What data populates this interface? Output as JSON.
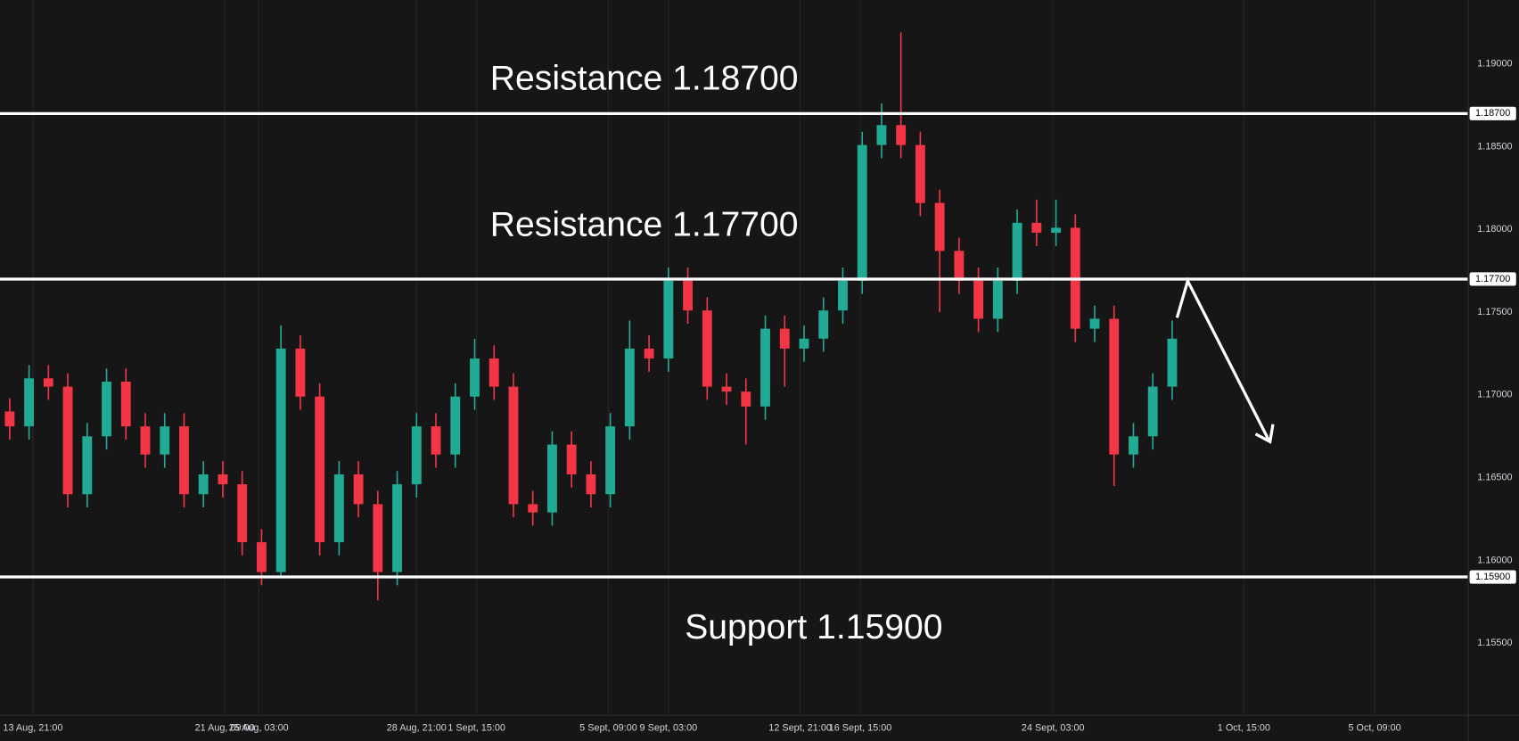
{
  "chart_data": {
    "type": "candlestick",
    "open": [
      1.169,
      1.1681,
      1.171,
      1.1705,
      1.164,
      1.1675,
      1.1708,
      1.1681,
      1.1664,
      1.1681,
      1.164,
      1.1652,
      1.1646,
      1.1611,
      1.1593,
      1.1728,
      1.1699,
      1.1611,
      1.1652,
      1.1634,
      1.1593,
      1.1646,
      1.1681,
      1.1664,
      1.1699,
      1.1722,
      1.1705,
      1.1634,
      1.1629,
      1.167,
      1.1652,
      1.164,
      1.1681,
      1.1728,
      1.1722,
      1.1769,
      1.1751,
      1.1705,
      1.1702,
      1.1693,
      1.174,
      1.1728,
      1.1734,
      1.1751,
      1.1769,
      1.1851,
      1.1863,
      1.1851,
      1.1816,
      1.1787,
      1.1769,
      1.1746,
      1.1769,
      1.1804,
      1.1798,
      1.1801,
      1.174,
      1.1746,
      1.1664,
      1.1675,
      1.1705
    ],
    "high": [
      1.1698,
      1.1718,
      1.1718,
      1.1713,
      1.1683,
      1.1716,
      1.1716,
      1.1689,
      1.1689,
      1.1689,
      1.166,
      1.166,
      1.1654,
      1.1619,
      1.1742,
      1.1736,
      1.1707,
      1.166,
      1.166,
      1.1642,
      1.1654,
      1.1689,
      1.1689,
      1.1707,
      1.1734,
      1.173,
      1.1713,
      1.1642,
      1.1678,
      1.1678,
      1.166,
      1.1689,
      1.1745,
      1.1736,
      1.1777,
      1.1777,
      1.1759,
      1.1713,
      1.171,
      1.1748,
      1.1748,
      1.1742,
      1.1759,
      1.1777,
      1.1859,
      1.1876,
      1.1919,
      1.1859,
      1.1824,
      1.1795,
      1.1777,
      1.1777,
      1.1812,
      1.1818,
      1.1818,
      1.1809,
      1.1754,
      1.1754,
      1.1683,
      1.1713,
      1.1745
    ],
    "low": [
      1.1673,
      1.1673,
      1.1697,
      1.1632,
      1.1632,
      1.1667,
      1.1673,
      1.1656,
      1.1656,
      1.1632,
      1.1632,
      1.1638,
      1.1603,
      1.1585,
      1.159,
      1.1691,
      1.1603,
      1.1603,
      1.1626,
      1.1576,
      1.1585,
      1.1638,
      1.1656,
      1.1656,
      1.1691,
      1.1697,
      1.1626,
      1.1621,
      1.1621,
      1.1644,
      1.1632,
      1.1632,
      1.1673,
      1.1714,
      1.1714,
      1.1743,
      1.1697,
      1.1694,
      1.167,
      1.1685,
      1.1705,
      1.172,
      1.1726,
      1.1743,
      1.1761,
      1.1843,
      1.1843,
      1.1808,
      1.175,
      1.1761,
      1.1738,
      1.1738,
      1.1761,
      1.179,
      1.179,
      1.1732,
      1.1732,
      1.1645,
      1.1656,
      1.1667,
      1.1697
    ],
    "close": [
      1.1681,
      1.171,
      1.1705,
      1.164,
      1.1675,
      1.1708,
      1.1681,
      1.1664,
      1.1681,
      1.164,
      1.1652,
      1.1646,
      1.1611,
      1.1593,
      1.1728,
      1.1699,
      1.1611,
      1.1652,
      1.1634,
      1.1593,
      1.1646,
      1.1681,
      1.1664,
      1.1699,
      1.1722,
      1.1705,
      1.1634,
      1.1629,
      1.167,
      1.1652,
      1.164,
      1.1681,
      1.1728,
      1.1722,
      1.1769,
      1.1751,
      1.1705,
      1.1702,
      1.1693,
      1.174,
      1.1728,
      1.1734,
      1.1751,
      1.1769,
      1.1851,
      1.1863,
      1.1851,
      1.1816,
      1.1787,
      1.1769,
      1.1746,
      1.1769,
      1.1804,
      1.1798,
      1.1801,
      1.174,
      1.1746,
      1.1664,
      1.1675,
      1.1705,
      1.1734
    ],
    "up_color": "#22ab94",
    "down_color": "#f23645",
    "xlim": [
      0,
      75.75
    ],
    "xticks": [
      {
        "value": 1.7,
        "label": "13 Aug, 21:00"
      },
      {
        "value": 11.6,
        "label": "21 Aug, 09:00"
      },
      {
        "value": 13.35,
        "label": "25 Aug, 03:00"
      },
      {
        "value": 21.5,
        "label": "28 Aug, 21:00"
      },
      {
        "value": 24.6,
        "label": "1 Sept, 15:00"
      },
      {
        "value": 31.4,
        "label": "5 Sept, 09:00"
      },
      {
        "value": 34.5,
        "label": "9 Sept, 03:00"
      },
      {
        "value": 41.3,
        "label": "12 Sept, 21:00"
      },
      {
        "value": 44.4,
        "label": "16 Sept, 15:00"
      },
      {
        "value": 54.35,
        "label": "24 Sept, 03:00"
      },
      {
        "value": 64.2,
        "label": "1 Oct, 15:00"
      },
      {
        "value": 70.95,
        "label": "5 Oct, 09:00"
      }
    ],
    "ylim": [
      1.15067,
      1.19386
    ],
    "yticks": [
      {
        "value": 1.19,
        "label": "1.19000"
      },
      {
        "value": 1.185,
        "label": "1.18500"
      },
      {
        "value": 1.18,
        "label": "1.18000"
      },
      {
        "value": 1.175,
        "label": "1.17500"
      },
      {
        "value": 1.17,
        "label": "1.17000"
      },
      {
        "value": 1.165,
        "label": "1.16500"
      },
      {
        "value": 1.16,
        "label": "1.16000"
      },
      {
        "value": 1.155,
        "label": "1.15500"
      }
    ],
    "grid": true,
    "levels": [
      {
        "value": 1.187,
        "label": "1.18700",
        "text": "Resistance 1.18700"
      },
      {
        "value": 1.177,
        "label": "1.17700",
        "text": "Resistance 1.17700"
      },
      {
        "value": 1.159,
        "label": "1.15900",
        "text": "Support 1.15900"
      }
    ],
    "level_color": "#ffffff"
  }
}
